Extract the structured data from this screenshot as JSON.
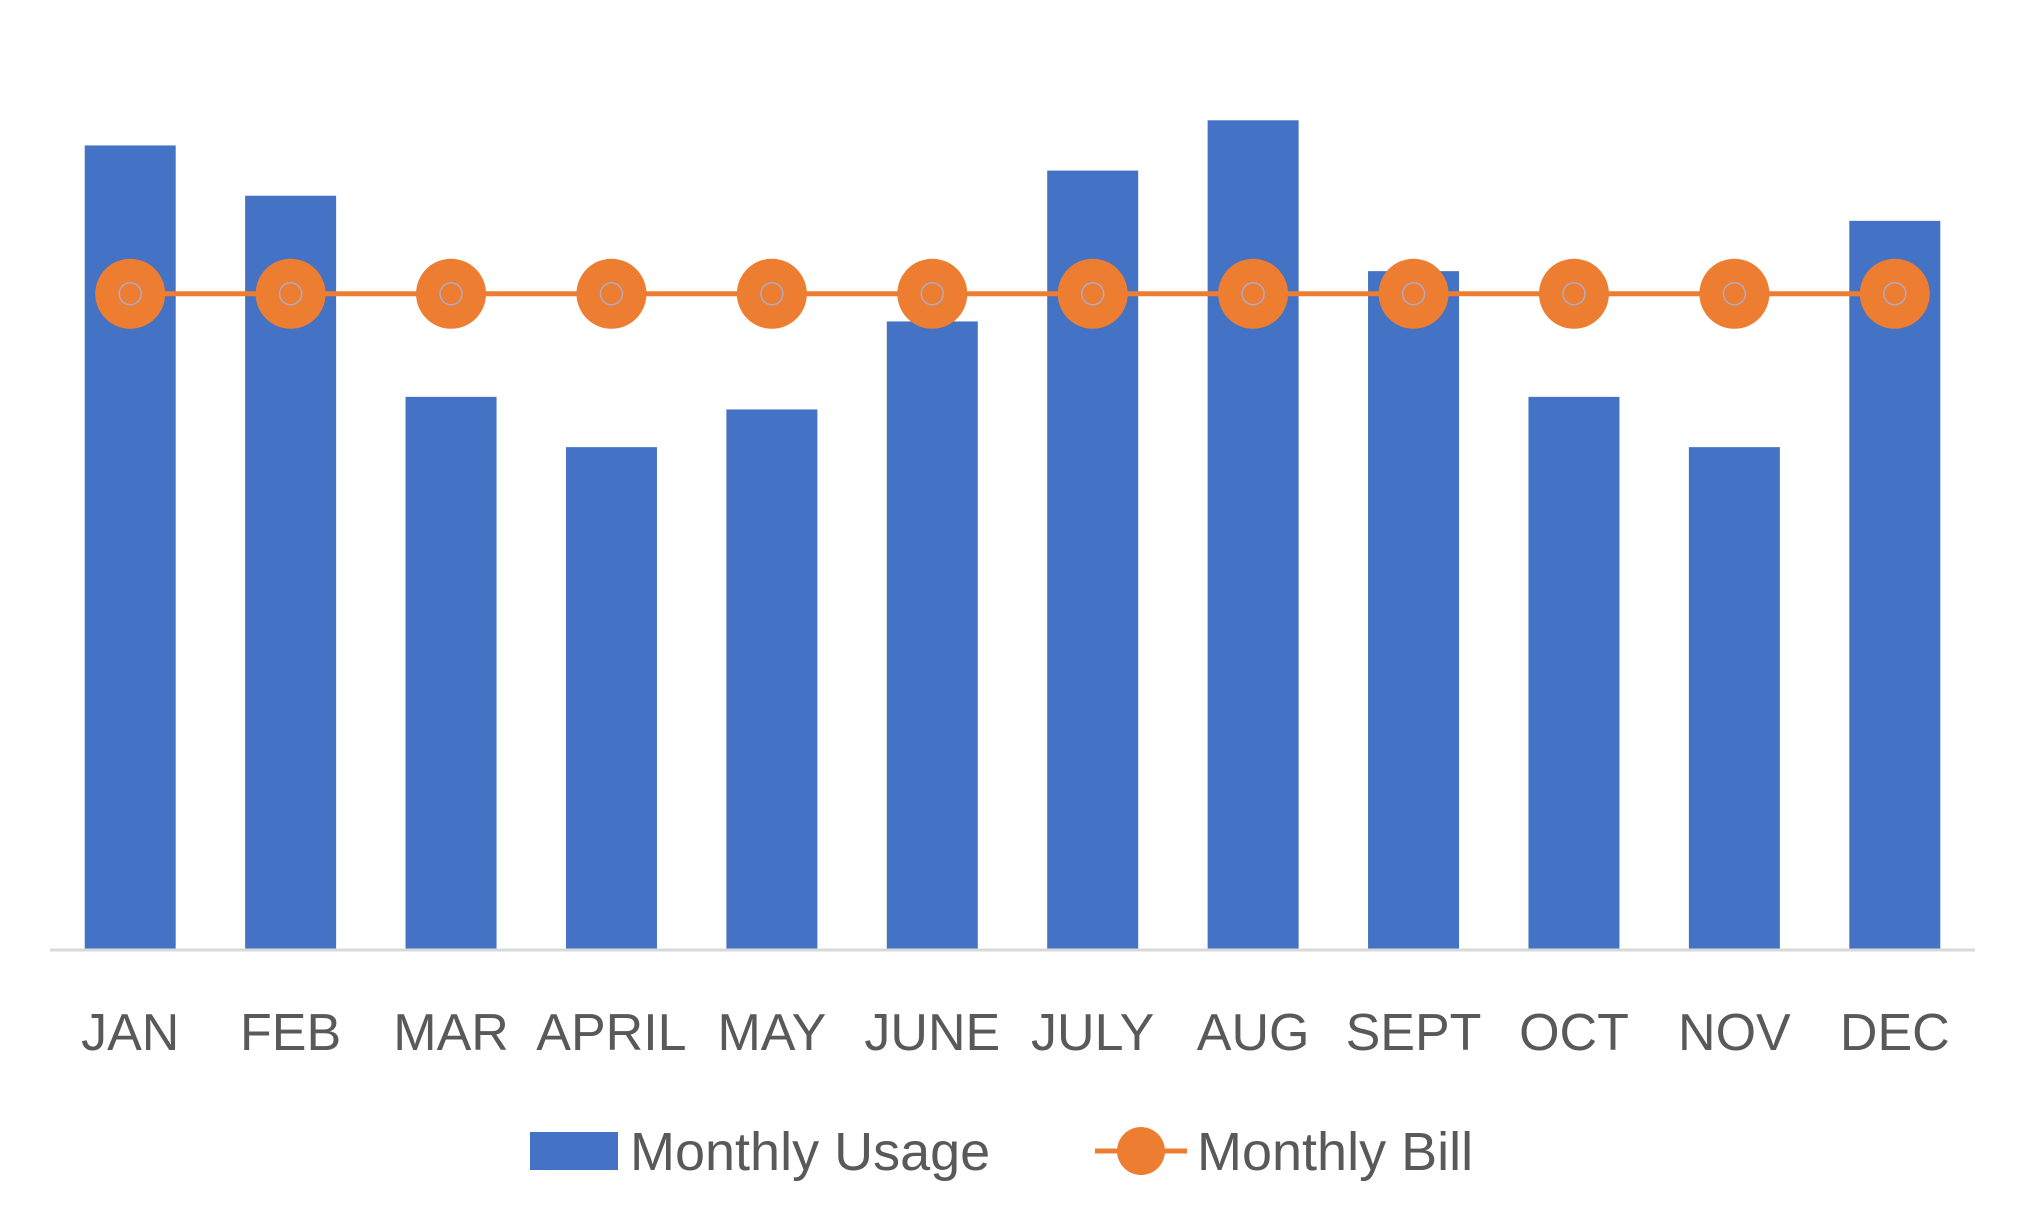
{
  "chart_data": {
    "type": "bar",
    "categories": [
      "JAN",
      "FEB",
      "MAR",
      "APRIL",
      "MAY",
      "JUNE",
      "JULY",
      "AUG",
      "SEPT",
      "OCT",
      "NOV",
      "DEC"
    ],
    "series": [
      {
        "name": "Monthly Usage",
        "type": "bar",
        "color": "#4472C4",
        "values": [
          32,
          30,
          22,
          20,
          21.5,
          25,
          31,
          33,
          27,
          22,
          20,
          29
        ]
      },
      {
        "name": "Monthly Bill",
        "type": "line",
        "color": "#ED7D31",
        "values": [
          26.1,
          26.1,
          26.1,
          26.1,
          26.1,
          26.1,
          26.1,
          26.1,
          26.1,
          26.1,
          26.1,
          26.1
        ]
      }
    ],
    "ylim": [
      0,
      35
    ],
    "grid": false,
    "legend_position": "bottom",
    "title": "",
    "xlabel": "",
    "ylabel": ""
  }
}
